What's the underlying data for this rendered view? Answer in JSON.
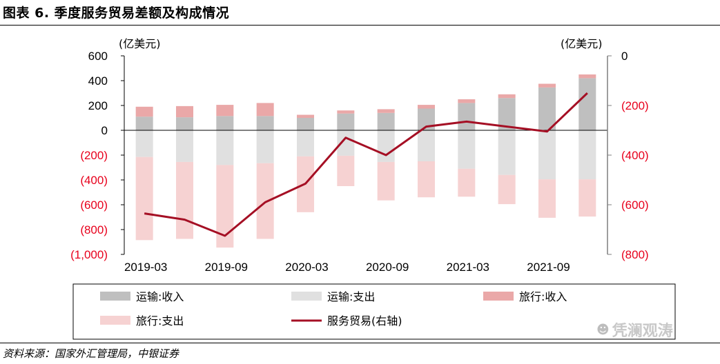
{
  "title": "图表 6. 季度服务贸易差额及构成情况",
  "source": "资料来源：国家外汇管理局，中银证券",
  "watermark": "凭澜观涛",
  "chart_data": {
    "type": "bar",
    "stacked": true,
    "left_unit": "(亿美元)",
    "right_unit": "(亿美元)",
    "left_ticks": [
      "600",
      "400",
      "200",
      "0",
      "(200)",
      "(400)",
      "(600)",
      "(800)",
      "(1,000)"
    ],
    "right_ticks": [
      "0",
      "(200)",
      "(400)",
      "(600)",
      "(800)"
    ],
    "ylim_left": [
      -1000,
      600
    ],
    "ylim_right": [
      -800,
      0
    ],
    "categories": [
      "2019-03",
      "2019-06",
      "2019-09",
      "2019-12",
      "2020-03",
      "2020-06",
      "2020-09",
      "2020-12",
      "2021-03",
      "2021-06",
      "2021-09",
      "2021-12"
    ],
    "x_tick_labels": [
      "2019-03",
      "2019-09",
      "2020-03",
      "2020-09",
      "2021-03",
      "2021-09"
    ],
    "series": [
      {
        "name": "运输:收入",
        "axis": "left",
        "color": "#bfbfbf",
        "values": [
          110,
          105,
          115,
          115,
          100,
          135,
          140,
          175,
          220,
          260,
          345,
          420
        ]
      },
      {
        "name": "运输:支出",
        "axis": "left",
        "color": "#e0e0e0",
        "values": [
          -215,
          -255,
          -280,
          -265,
          -210,
          -205,
          -255,
          -250,
          -310,
          -360,
          -395,
          -395
        ]
      },
      {
        "name": "旅行:收入",
        "axis": "left",
        "color": "#eaa8a8",
        "values": [
          80,
          90,
          90,
          105,
          25,
          25,
          30,
          30,
          30,
          30,
          30,
          30
        ]
      },
      {
        "name": "旅行:支出",
        "axis": "left",
        "color": "#f6d2d2",
        "values": [
          -670,
          -620,
          -665,
          -610,
          -450,
          -245,
          -310,
          -290,
          -225,
          -235,
          -310,
          -300
        ]
      },
      {
        "name": "服务贸易(右轴)",
        "axis": "right",
        "color": "#a50f24",
        "type": "line",
        "values": [
          -635,
          -660,
          -725,
          -590,
          -515,
          -330,
          -400,
          -285,
          -265,
          -285,
          -305,
          -150
        ]
      }
    ],
    "legend_placement": "bottom"
  }
}
